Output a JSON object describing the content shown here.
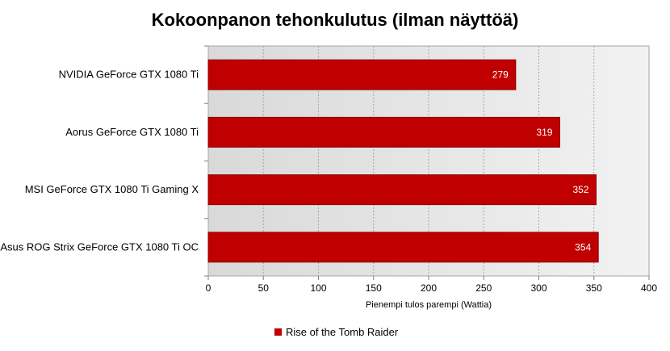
{
  "chart_data": {
    "type": "bar",
    "orientation": "horizontal",
    "title": "Kokoonpanon tehonkulutus (ilman näyttöä)",
    "xlabel": "Pienempi tulos parempi (Wattia)",
    "ylabel": "",
    "categories": [
      "NVIDIA GeForce GTX 1080 Ti",
      "Aorus GeForce GTX 1080 Ti",
      "MSI GeForce GTX 1080 Ti Gaming X",
      "Asus ROG Strix GeForce GTX 1080 Ti OC"
    ],
    "series": [
      {
        "name": "Rise of the Tomb Raider",
        "values": [
          279,
          319,
          352,
          354
        ]
      }
    ],
    "xlim": [
      0,
      400
    ],
    "xticks": [
      0,
      50,
      100,
      150,
      200,
      250,
      300,
      350,
      400
    ],
    "grid": "vertical-dashed",
    "legend_position": "bottom",
    "colors": {
      "bar": "#C00000",
      "bar_edge": "#8B0000",
      "band_dark": "#D9D9D9",
      "band_light": "#F2F2F2"
    }
  }
}
